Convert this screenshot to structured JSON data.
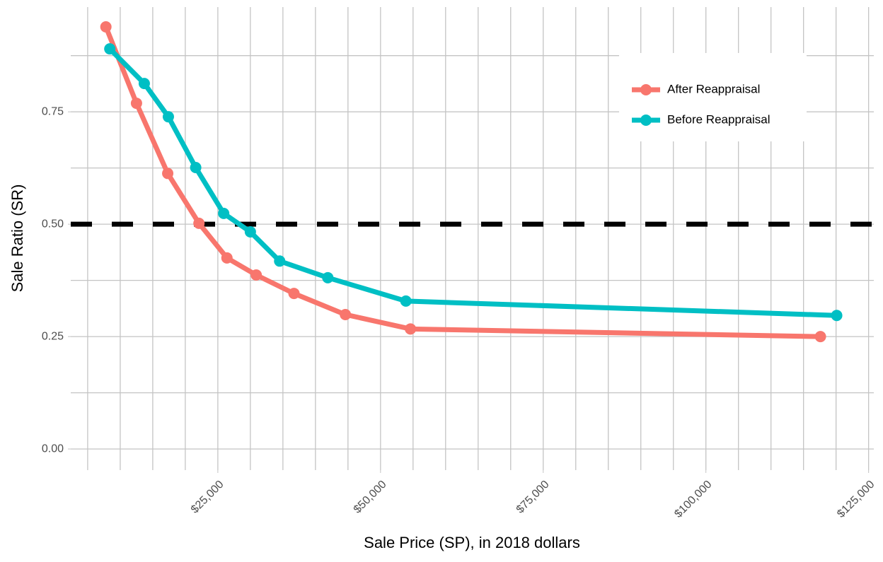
{
  "chart_data": {
    "type": "line",
    "x_label": "Sale Price (SP), in 2018 dollars",
    "y_label": "Sale Ratio (SR)",
    "series": [
      {
        "name": "After Reappraisal",
        "color": "#f8766d",
        "x": [
          7800,
          12500,
          17300,
          22100,
          26400,
          30900,
          36700,
          44600,
          54600,
          117600
        ],
        "values": [
          0.939,
          0.769,
          0.613,
          0.502,
          0.425,
          0.387,
          0.346,
          0.299,
          0.267,
          0.25
        ]
      },
      {
        "name": "Before Reappraisal",
        "color": "#00bfc4",
        "x": [
          8400,
          13700,
          17400,
          21600,
          25900,
          30000,
          34500,
          41900,
          53900,
          120100
        ],
        "values": [
          0.89,
          0.813,
          0.739,
          0.626,
          0.524,
          0.483,
          0.418,
          0.381,
          0.329,
          0.297
        ]
      }
    ],
    "xlim": [
      2400,
      125800
    ],
    "ylim": [
      -0.047,
      0.983
    ],
    "xticks": [
      {
        "value": 25000,
        "label": "$25,000"
      },
      {
        "value": 50000,
        "label": "$50,000"
      },
      {
        "value": 75000,
        "label": "$75,000"
      },
      {
        "value": 100000,
        "label": "$100,000"
      },
      {
        "value": 125000,
        "label": "$125,000"
      }
    ],
    "yticks": [
      {
        "value": 0,
        "label": "0.00"
      },
      {
        "value": 0.25,
        "label": "0.25"
      },
      {
        "value": 0.5,
        "label": "0.50"
      },
      {
        "value": 0.75,
        "label": "0.75"
      }
    ],
    "xgrid": [
      5000,
      10000,
      15000,
      20000,
      25000,
      30000,
      35000,
      40000,
      45000,
      50000,
      55000,
      60000,
      65000,
      70000,
      75000,
      80000,
      85000,
      90000,
      95000,
      100000,
      105000,
      110000,
      115000,
      120000,
      125000
    ],
    "ygrid": [
      0,
      0.125,
      0.25,
      0.375,
      0.5,
      0.625,
      0.75,
      0.875
    ],
    "hline": 0.5,
    "legend": "top-right"
  }
}
